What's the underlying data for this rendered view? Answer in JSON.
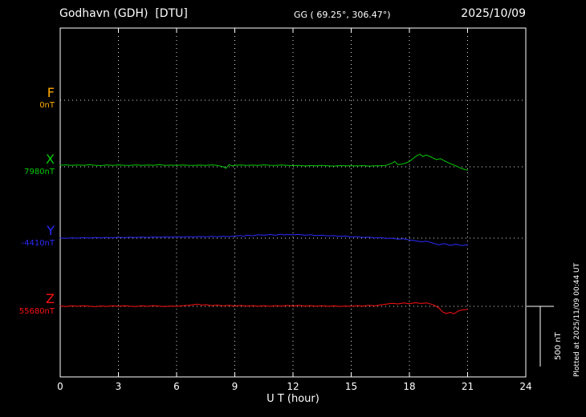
{
  "header": {
    "station": "Godhavn (GDH)  [DTU]",
    "coords": "GG ( 69.25°, 306.47°)",
    "date": "2025/10/09"
  },
  "axis": {
    "label": "U T (hour)",
    "ticks": [
      "0",
      "3",
      "6",
      "9",
      "12",
      "15",
      "18",
      "21",
      "24"
    ]
  },
  "side_note": "Plotted at 2025/11/09 00:44 UT",
  "scale_bar": {
    "label": "500 nT",
    "nT": 500
  },
  "components": [
    {
      "id": "F",
      "label": "F",
      "baseline_label": "0nT",
      "color": "#ffaa00"
    },
    {
      "id": "X",
      "label": "X",
      "baseline_label": "7980nT",
      "color": "#00cc00"
    },
    {
      "id": "Y",
      "label": "Y",
      "baseline_label": "-4410nT",
      "color": "#2b2bff"
    },
    {
      "id": "Z",
      "label": "Z",
      "baseline_label": "55680nT",
      "color": "#ff1111"
    }
  ],
  "chart_data": {
    "type": "line",
    "title": "Godhavn (GDH) [DTU] magnetogram 2025/10/09",
    "xlabel": "U T (hour)",
    "x_range": [
      0,
      24
    ],
    "x_ticks": [
      0,
      3,
      6,
      9,
      12,
      15,
      18,
      21,
      24
    ],
    "grid": "dotted vertical every 3 h, dotted horizontal baseline per component",
    "scale_bar_nT": 500,
    "data_end_hour": 21,
    "series": [
      {
        "name": "F",
        "baseline_nT": 0,
        "color": "#ffaa00",
        "points": []
      },
      {
        "name": "X",
        "baseline_nT": 7980,
        "color": "#00cc00",
        "points": [
          [
            0,
            13
          ],
          [
            0.3,
            16
          ],
          [
            0.6,
            11
          ],
          [
            0.9,
            15
          ],
          [
            1.2,
            12
          ],
          [
            1.5,
            17
          ],
          [
            1.8,
            13
          ],
          [
            2.1,
            10
          ],
          [
            2.4,
            15
          ],
          [
            2.7,
            12
          ],
          [
            3.0,
            16
          ],
          [
            3.3,
            13
          ],
          [
            3.6,
            11
          ],
          [
            3.9,
            16
          ],
          [
            4.2,
            12
          ],
          [
            4.5,
            15
          ],
          [
            4.8,
            13
          ],
          [
            5.1,
            17
          ],
          [
            5.4,
            12
          ],
          [
            5.7,
            14
          ],
          [
            6.0,
            11
          ],
          [
            6.3,
            15
          ],
          [
            6.6,
            13
          ],
          [
            6.9,
            12
          ],
          [
            7.2,
            14
          ],
          [
            7.5,
            11
          ],
          [
            7.8,
            16
          ],
          [
            8.1,
            12
          ],
          [
            8.4,
            0
          ],
          [
            8.55,
            -12
          ],
          [
            8.7,
            18
          ],
          [
            8.85,
            8
          ],
          [
            9.0,
            13
          ],
          [
            9.3,
            15
          ],
          [
            9.6,
            11
          ],
          [
            9.9,
            14
          ],
          [
            10.2,
            12
          ],
          [
            10.5,
            16
          ],
          [
            10.8,
            13
          ],
          [
            11.1,
            11
          ],
          [
            11.4,
            15
          ],
          [
            11.7,
            12
          ],
          [
            12.0,
            10
          ],
          [
            12.3,
            12
          ],
          [
            12.6,
            7
          ],
          [
            12.9,
            10
          ],
          [
            13.2,
            8
          ],
          [
            13.5,
            11
          ],
          [
            13.8,
            9
          ],
          [
            14.1,
            6
          ],
          [
            14.4,
            10
          ],
          [
            14.7,
            8
          ],
          [
            15.0,
            9
          ],
          [
            15.3,
            7
          ],
          [
            15.6,
            10
          ],
          [
            15.9,
            6
          ],
          [
            16.2,
            9
          ],
          [
            16.5,
            8
          ],
          [
            16.8,
            12
          ],
          [
            17.1,
            30
          ],
          [
            17.25,
            45
          ],
          [
            17.4,
            18
          ],
          [
            17.6,
            22
          ],
          [
            17.8,
            30
          ],
          [
            18.0,
            45
          ],
          [
            18.2,
            70
          ],
          [
            18.4,
            95
          ],
          [
            18.55,
            105
          ],
          [
            18.7,
            85
          ],
          [
            18.85,
            98
          ],
          [
            19.0,
            90
          ],
          [
            19.2,
            75
          ],
          [
            19.4,
            60
          ],
          [
            19.6,
            68
          ],
          [
            19.8,
            50
          ],
          [
            20.0,
            35
          ],
          [
            20.2,
            20
          ],
          [
            20.4,
            8
          ],
          [
            20.6,
            -8
          ],
          [
            20.8,
            -20
          ],
          [
            21.0,
            -28
          ]
        ]
      },
      {
        "name": "Y",
        "baseline_nT": -4410,
        "color": "#2b2bff",
        "points": [
          [
            0,
            2
          ],
          [
            0.3,
            -2
          ],
          [
            0.6,
            3
          ],
          [
            0.9,
            0
          ],
          [
            1.2,
            4
          ],
          [
            1.5,
            1
          ],
          [
            1.8,
            5
          ],
          [
            2.1,
            2
          ],
          [
            2.4,
            6
          ],
          [
            2.7,
            3
          ],
          [
            3.0,
            7
          ],
          [
            3.3,
            4
          ],
          [
            3.6,
            8
          ],
          [
            3.9,
            5
          ],
          [
            4.2,
            9
          ],
          [
            4.5,
            6
          ],
          [
            4.8,
            10
          ],
          [
            5.1,
            7
          ],
          [
            5.4,
            11
          ],
          [
            5.7,
            8
          ],
          [
            6.0,
            12
          ],
          [
            6.3,
            9
          ],
          [
            6.6,
            13
          ],
          [
            6.9,
            10
          ],
          [
            7.2,
            14
          ],
          [
            7.5,
            11
          ],
          [
            7.8,
            15
          ],
          [
            8.1,
            12
          ],
          [
            8.4,
            16
          ],
          [
            8.7,
            13
          ],
          [
            9.0,
            18
          ],
          [
            9.3,
            22
          ],
          [
            9.45,
            15
          ],
          [
            9.6,
            25
          ],
          [
            9.9,
            20
          ],
          [
            10.2,
            28
          ],
          [
            10.5,
            24
          ],
          [
            10.8,
            30
          ],
          [
            11.1,
            25
          ],
          [
            11.4,
            33
          ],
          [
            11.55,
            26
          ],
          [
            11.7,
            30
          ],
          [
            12.0,
            27
          ],
          [
            12.3,
            31
          ],
          [
            12.6,
            24
          ],
          [
            12.9,
            28
          ],
          [
            13.2,
            22
          ],
          [
            13.5,
            25
          ],
          [
            13.8,
            18
          ],
          [
            14.1,
            22
          ],
          [
            14.4,
            15
          ],
          [
            14.7,
            18
          ],
          [
            15.0,
            10
          ],
          [
            15.3,
            13
          ],
          [
            15.6,
            6
          ],
          [
            15.9,
            9
          ],
          [
            16.2,
            2
          ],
          [
            16.5,
            5
          ],
          [
            16.8,
            -3
          ],
          [
            17.1,
            0
          ],
          [
            17.4,
            -8
          ],
          [
            17.7,
            -5
          ],
          [
            18.0,
            -15
          ],
          [
            18.3,
            -22
          ],
          [
            18.6,
            -30
          ],
          [
            18.9,
            -25
          ],
          [
            19.2,
            -40
          ],
          [
            19.5,
            -55
          ],
          [
            19.8,
            -45
          ],
          [
            20.1,
            -60
          ],
          [
            20.4,
            -50
          ],
          [
            20.7,
            -62
          ],
          [
            21.0,
            -55
          ]
        ]
      },
      {
        "name": "Z",
        "baseline_nT": 55680,
        "color": "#ff1111",
        "points": [
          [
            0,
            3
          ],
          [
            0.3,
            -2
          ],
          [
            0.6,
            4
          ],
          [
            0.9,
            0
          ],
          [
            1.2,
            5
          ],
          [
            1.5,
            1
          ],
          [
            1.8,
            -3
          ],
          [
            2.1,
            3
          ],
          [
            2.4,
            -1
          ],
          [
            2.7,
            4
          ],
          [
            3.0,
            0
          ],
          [
            3.3,
            5
          ],
          [
            3.6,
            1
          ],
          [
            3.9,
            -2
          ],
          [
            4.2,
            4
          ],
          [
            4.5,
            0
          ],
          [
            4.8,
            6
          ],
          [
            5.1,
            2
          ],
          [
            5.4,
            -2
          ],
          [
            5.7,
            3
          ],
          [
            6.0,
            0
          ],
          [
            6.3,
            5
          ],
          [
            6.6,
            8
          ],
          [
            6.9,
            14
          ],
          [
            7.1,
            18
          ],
          [
            7.3,
            10
          ],
          [
            7.5,
            15
          ],
          [
            7.8,
            6
          ],
          [
            8.1,
            10
          ],
          [
            8.4,
            4
          ],
          [
            8.7,
            8
          ],
          [
            9.0,
            3
          ],
          [
            9.3,
            7
          ],
          [
            9.6,
            2
          ],
          [
            9.9,
            6
          ],
          [
            10.2,
            1
          ],
          [
            10.5,
            5
          ],
          [
            10.8,
            0
          ],
          [
            11.1,
            6
          ],
          [
            11.4,
            2
          ],
          [
            11.7,
            7
          ],
          [
            12.0,
            3
          ],
          [
            12.3,
            8
          ],
          [
            12.6,
            2
          ],
          [
            12.9,
            6
          ],
          [
            13.2,
            1
          ],
          [
            13.5,
            5
          ],
          [
            13.8,
            0
          ],
          [
            14.1,
            4
          ],
          [
            14.4,
            -1
          ],
          [
            14.7,
            3
          ],
          [
            15.0,
            0
          ],
          [
            15.3,
            6
          ],
          [
            15.6,
            2
          ],
          [
            15.9,
            8
          ],
          [
            16.2,
            4
          ],
          [
            16.5,
            12
          ],
          [
            16.8,
            18
          ],
          [
            17.1,
            25
          ],
          [
            17.4,
            20
          ],
          [
            17.7,
            28
          ],
          [
            18.0,
            22
          ],
          [
            18.3,
            30
          ],
          [
            18.6,
            24
          ],
          [
            18.9,
            28
          ],
          [
            19.2,
            15
          ],
          [
            19.5,
            -10
          ],
          [
            19.7,
            -45
          ],
          [
            19.9,
            -60
          ],
          [
            20.1,
            -50
          ],
          [
            20.3,
            -62
          ],
          [
            20.5,
            -40
          ],
          [
            20.7,
            -30
          ],
          [
            21.0,
            -25
          ]
        ]
      }
    ]
  }
}
